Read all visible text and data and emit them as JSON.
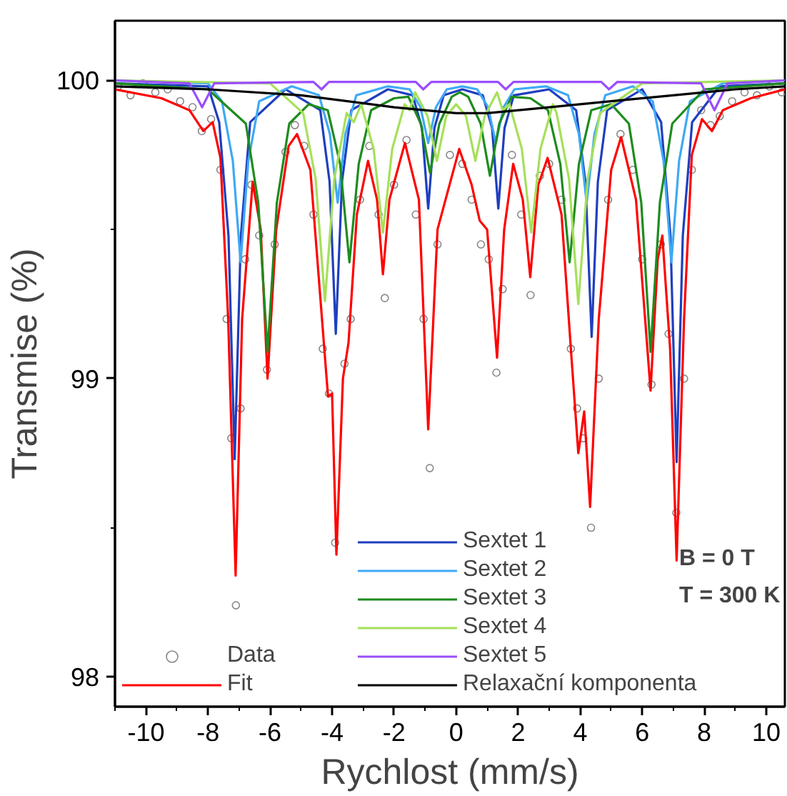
{
  "chart_data": {
    "type": "line",
    "xlabel": "Rychlost (mm/s)",
    "ylabel": "Transmise (%)",
    "xlim": [
      -11,
      10.6
    ],
    "ylim": [
      97.9,
      100.2
    ],
    "xticks": [
      -10,
      -8,
      -6,
      -4,
      -2,
      0,
      2,
      4,
      6,
      8,
      10
    ],
    "yticks": [
      98,
      99,
      100
    ],
    "grid": false,
    "legend": "bottom",
    "line_style": "solid",
    "annotations": [
      "B = 0 T",
      "T = 300 K"
    ],
    "series": [
      {
        "name": "Data",
        "type": "scatter",
        "marker": "circle",
        "color": "#888888",
        "x": [
          -10.9,
          -10.5,
          -10.1,
          -9.7,
          -9.3,
          -8.9,
          -8.5,
          -8.2,
          -7.9,
          -7.6,
          -7.4,
          -7.25,
          -7.1,
          -6.95,
          -6.8,
          -6.6,
          -6.35,
          -6.1,
          -5.85,
          -5.5,
          -5.2,
          -4.9,
          -4.6,
          -4.3,
          -4.1,
          -3.9,
          -3.6,
          -3.4,
          -3.1,
          -2.8,
          -2.5,
          -2.3,
          -2.0,
          -1.6,
          -1.3,
          -1.05,
          -0.85,
          -0.6,
          -0.2,
          0.2,
          0.5,
          0.8,
          1.05,
          1.3,
          1.5,
          1.8,
          2.1,
          2.4,
          2.7,
          3.0,
          3.4,
          3.7,
          3.9,
          4.1,
          4.35,
          4.6,
          4.9,
          5.3,
          5.7,
          6.0,
          6.3,
          6.6,
          6.85,
          7.1,
          7.35,
          7.6,
          7.9,
          8.2,
          8.5,
          8.9,
          9.3,
          9.7,
          10.1,
          10.5
        ],
        "values": [
          99.98,
          99.95,
          99.99,
          99.96,
          99.97,
          99.93,
          99.91,
          99.83,
          99.87,
          99.7,
          99.2,
          98.8,
          98.24,
          98.9,
          99.4,
          99.65,
          99.48,
          99.03,
          99.45,
          99.76,
          99.85,
          99.78,
          99.55,
          99.1,
          98.95,
          98.45,
          99.05,
          99.2,
          99.6,
          99.78,
          99.55,
          99.27,
          99.65,
          99.8,
          99.55,
          99.2,
          98.7,
          99.45,
          99.75,
          99.72,
          99.6,
          99.45,
          99.4,
          99.02,
          99.3,
          99.75,
          99.55,
          99.28,
          99.68,
          99.72,
          99.6,
          99.1,
          98.9,
          98.8,
          98.5,
          99.0,
          99.6,
          99.82,
          99.7,
          99.4,
          98.98,
          99.45,
          99.15,
          98.55,
          99.0,
          99.7,
          99.9,
          99.85,
          99.88,
          99.93,
          99.96,
          99.95,
          99.98,
          99.96
        ]
      },
      {
        "name": "Fit",
        "color": "#ff0000",
        "x": [
          -11,
          -9.5,
          -8.6,
          -8.15,
          -7.85,
          -7.6,
          -7.35,
          -7.11,
          -6.9,
          -6.56,
          -6.3,
          -6.08,
          -5.8,
          -5.4,
          -5.13,
          -4.7,
          -4.4,
          -4.13,
          -4.0,
          -3.86,
          -3.65,
          -3.47,
          -3.2,
          -2.84,
          -2.55,
          -2.36,
          -2.15,
          -1.65,
          -1.2,
          -0.9,
          -0.6,
          0.1,
          0.5,
          0.76,
          1.0,
          1.32,
          1.55,
          1.84,
          2.15,
          2.39,
          2.65,
          2.95,
          3.4,
          3.7,
          3.94,
          4.13,
          4.32,
          4.6,
          5.0,
          5.32,
          5.8,
          6.27,
          6.5,
          6.65,
          6.9,
          7.11,
          7.35,
          7.6,
          7.93,
          8.25,
          8.6,
          9.5,
          10.6
        ],
        "values": [
          99.97,
          99.94,
          99.9,
          99.83,
          99.86,
          99.74,
          99.2,
          98.34,
          99.2,
          99.66,
          99.5,
          99.0,
          99.5,
          99.78,
          99.82,
          99.7,
          99.3,
          98.94,
          98.95,
          98.41,
          99.0,
          99.12,
          99.55,
          99.73,
          99.6,
          99.35,
          99.6,
          99.79,
          99.6,
          98.83,
          99.5,
          99.77,
          99.65,
          99.53,
          99.5,
          99.07,
          99.5,
          99.72,
          99.6,
          99.34,
          99.65,
          99.74,
          99.55,
          99.1,
          98.75,
          98.89,
          98.57,
          99.2,
          99.7,
          99.81,
          99.6,
          98.96,
          99.4,
          99.48,
          99.1,
          98.39,
          99.2,
          99.75,
          99.87,
          99.83,
          99.9,
          99.94,
          99.97
        ]
      },
      {
        "name": "Sextet 1",
        "color": "#1f3fbf",
        "x": [
          -11,
          -8,
          -7.64,
          -7.34,
          -7.14,
          -6.94,
          -6.64,
          -5.5,
          -4.38,
          -4.08,
          -3.88,
          -3.68,
          -3.38,
          -2.2,
          -1.4,
          -1.1,
          -0.9,
          -0.7,
          -0.4,
          0.2,
          0.86,
          1.16,
          1.36,
          1.56,
          1.86,
          3,
          3.87,
          4.17,
          4.37,
          4.57,
          4.87,
          6,
          6.61,
          6.91,
          7.11,
          7.31,
          7.61,
          8.5,
          10.6
        ],
        "values": [
          99.99,
          99.98,
          99.86,
          99.48,
          98.73,
          99.48,
          99.86,
          99.97,
          99.9,
          99.66,
          99.15,
          99.66,
          99.9,
          99.97,
          99.95,
          99.84,
          99.57,
          99.84,
          99.95,
          99.97,
          99.95,
          99.84,
          99.57,
          99.84,
          99.95,
          99.97,
          99.9,
          99.66,
          99.14,
          99.66,
          99.9,
          99.97,
          99.86,
          99.48,
          98.72,
          99.48,
          99.86,
          99.98,
          99.99
        ]
      },
      {
        "name": "Sextet 2",
        "color": "#3fa9f5",
        "x": [
          -11,
          -8,
          -7.55,
          -7.2,
          -6.95,
          -6.7,
          -6.35,
          -5.3,
          -4.42,
          -4.07,
          -3.82,
          -3.57,
          -3.22,
          -2.2,
          -1.5,
          -1.15,
          -0.9,
          -0.65,
          -0.3,
          0.2,
          0.68,
          1.03,
          1.28,
          1.53,
          1.88,
          2.9,
          3.61,
          3.96,
          4.21,
          4.46,
          4.81,
          5.7,
          6.34,
          6.69,
          6.94,
          7.19,
          7.54,
          8.6,
          10.6
        ],
        "values": [
          100,
          99.99,
          99.93,
          99.73,
          99.39,
          99.73,
          99.93,
          99.98,
          99.95,
          99.82,
          99.59,
          99.82,
          99.95,
          99.98,
          99.97,
          99.91,
          99.79,
          99.91,
          99.97,
          99.98,
          99.97,
          99.91,
          99.79,
          99.91,
          99.97,
          99.98,
          99.95,
          99.82,
          99.59,
          99.82,
          99.95,
          99.98,
          99.93,
          99.73,
          99.39,
          99.73,
          99.93,
          99.99,
          100
        ]
      },
      {
        "name": "Sextet 3",
        "color": "#1e8c1e",
        "x": [
          -11,
          -8,
          -6.78,
          -6.38,
          -6.08,
          -5.78,
          -5.38,
          -4.75,
          -4.14,
          -3.74,
          -3.44,
          -3.14,
          -2.74,
          -2,
          -1.54,
          -1.14,
          -0.84,
          -0.54,
          -0.14,
          0.12,
          0.39,
          0.79,
          1.09,
          1.39,
          1.79,
          2.4,
          2.96,
          3.36,
          3.66,
          3.96,
          4.36,
          5,
          5.57,
          5.97,
          6.27,
          6.57,
          6.97,
          8,
          10.6
        ],
        "values": [
          99.99,
          99.97,
          99.855,
          99.59,
          99.09,
          99.59,
          99.855,
          99.92,
          99.9,
          99.72,
          99.39,
          99.72,
          99.9,
          99.94,
          99.945,
          99.855,
          99.69,
          99.855,
          99.945,
          99.96,
          99.945,
          99.855,
          99.68,
          99.855,
          99.945,
          99.94,
          99.9,
          99.72,
          99.39,
          99.72,
          99.9,
          99.92,
          99.855,
          99.59,
          99.09,
          99.59,
          99.855,
          99.97,
          99.99
        ]
      },
      {
        "name": "Sextet 4",
        "color": "#a6e05a",
        "x": [
          -11,
          -6,
          -4.93,
          -4.53,
          -4.23,
          -3.93,
          -3.53,
          -3.3,
          -3.06,
          -2.66,
          -2.36,
          -2.06,
          -1.66,
          -1.5,
          -1.32,
          -0.92,
          -0.62,
          -0.32,
          0,
          0.32,
          0.62,
          0.92,
          1.32,
          1.5,
          1.72,
          2.12,
          2.42,
          2.72,
          3.12,
          3.24,
          3.64,
          3.94,
          4.24,
          4.64,
          6,
          10.6
        ],
        "values": [
          100,
          99.99,
          99.89,
          99.67,
          99.26,
          99.67,
          99.89,
          99.86,
          99.92,
          99.77,
          99.49,
          99.77,
          99.92,
          99.9,
          99.96,
          99.88,
          99.73,
          99.88,
          99.92,
          99.88,
          99.73,
          99.88,
          99.96,
          99.9,
          99.92,
          99.77,
          99.49,
          99.77,
          99.92,
          99.89,
          99.67,
          99.25,
          99.67,
          99.89,
          99.99,
          100
        ]
      },
      {
        "name": "Sextet 5",
        "color": "#9b4dff",
        "x": [
          -11,
          -8.6,
          -8.19,
          -7.8,
          -4.6,
          -4.34,
          -4.1,
          -1.3,
          -1.06,
          -0.8,
          1.35,
          1.6,
          1.85,
          4.68,
          4.93,
          5.2,
          7.9,
          8.33,
          8.75,
          10.6
        ],
        "values": [
          100,
          99.99,
          99.91,
          99.99,
          99.995,
          99.97,
          99.995,
          99.995,
          99.97,
          99.995,
          99.995,
          99.97,
          99.995,
          99.995,
          99.97,
          99.995,
          99.99,
          99.9,
          99.99,
          100
        ]
      },
      {
        "name": "Relaxační komponenta",
        "color": "#000000",
        "x": [
          -11,
          -8,
          -5,
          -2,
          0,
          1,
          3,
          5,
          7,
          9,
          10.6
        ],
        "values": [
          99.98,
          99.97,
          99.95,
          99.91,
          99.89,
          99.89,
          99.91,
          99.93,
          99.95,
          99.97,
          99.98
        ]
      }
    ]
  }
}
